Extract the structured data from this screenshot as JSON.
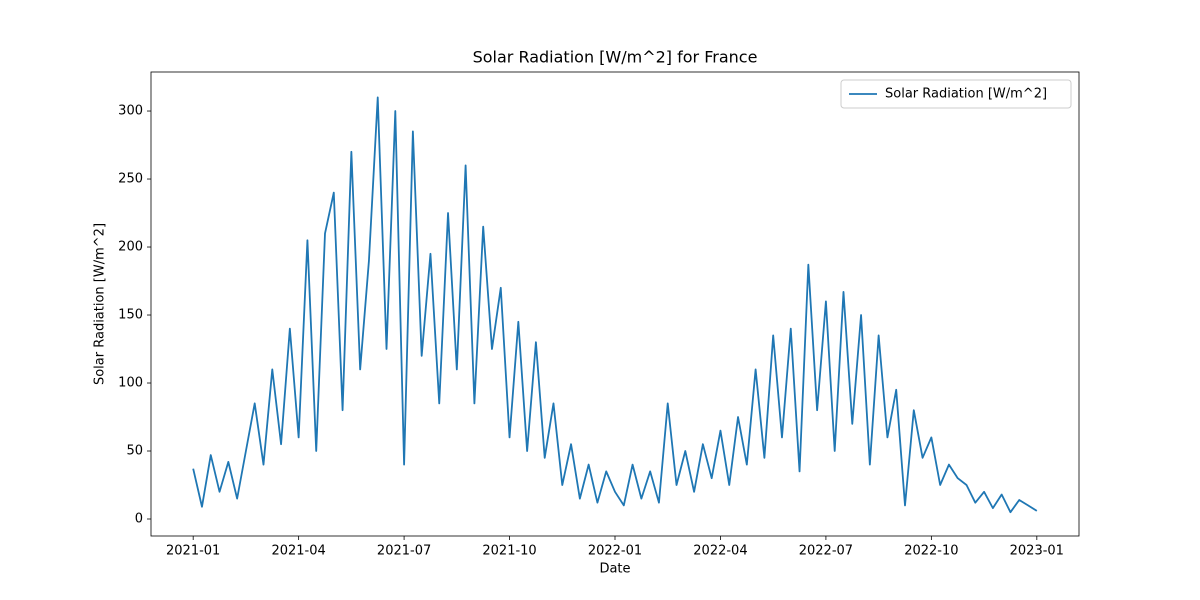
{
  "chart_data": {
    "type": "line",
    "title": "Solar Radiation [W/m^2] for France",
    "x_label": "Date",
    "y_label": "Solar Radiation [W/m^2]",
    "x": [
      0,
      0.25,
      0.5,
      0.75,
      1,
      1.25,
      1.5,
      1.75,
      2,
      2.25,
      2.5,
      2.75,
      3,
      3.25,
      3.5,
      3.75,
      4,
      4.25,
      4.5,
      4.75,
      5,
      5.25,
      5.5,
      5.75,
      6,
      6.25,
      6.5,
      6.75,
      7,
      7.25,
      7.5,
      7.75,
      8,
      8.25,
      8.5,
      8.75,
      9,
      9.25,
      9.5,
      9.75,
      10,
      10.25,
      10.5,
      10.75,
      11,
      11.25,
      11.5,
      11.75,
      12,
      12.25,
      12.5,
      12.75,
      13,
      13.25,
      13.5,
      13.75,
      14,
      14.25,
      14.5,
      14.75,
      15,
      15.25,
      15.5,
      15.75,
      16,
      16.25,
      16.5,
      16.75,
      17,
      17.25,
      17.5,
      17.75,
      18,
      18.25,
      18.5,
      18.75,
      19,
      19.25,
      19.5,
      19.75,
      20,
      20.25,
      20.5,
      20.75,
      21,
      21.25,
      21.5,
      21.75,
      22,
      22.25,
      22.5,
      22.75,
      23,
      23.25,
      23.5,
      23.75,
      24
    ],
    "series": [
      {
        "name": "Solar Radiation [W/m^2]",
        "color": "#1f77b4",
        "values": [
          37,
          9,
          47,
          20,
          42,
          15,
          50,
          85,
          40,
          110,
          55,
          140,
          60,
          205,
          50,
          210,
          240,
          80,
          270,
          110,
          190,
          310,
          125,
          300,
          40,
          285,
          120,
          195,
          85,
          225,
          110,
          260,
          85,
          215,
          125,
          170,
          60,
          145,
          50,
          130,
          45,
          85,
          25,
          55,
          15,
          40,
          12,
          35,
          20,
          10,
          40,
          15,
          35,
          12,
          85,
          25,
          50,
          20,
          55,
          30,
          65,
          25,
          75,
          40,
          110,
          45,
          135,
          60,
          140,
          35,
          187,
          80,
          160,
          50,
          167,
          70,
          150,
          40,
          135,
          60,
          95,
          10,
          80,
          45,
          60,
          25,
          40,
          30,
          25,
          12,
          20,
          8,
          18,
          5,
          14,
          10,
          6
        ]
      }
    ],
    "xlim": [
      -1.2,
      25.2
    ],
    "xticks": [
      {
        "value": 0,
        "label": "2021-01"
      },
      {
        "value": 3,
        "label": "2021-04"
      },
      {
        "value": 6,
        "label": "2021-07"
      },
      {
        "value": 9,
        "label": "2021-10"
      },
      {
        "value": 12,
        "label": "2022-01"
      },
      {
        "value": 15,
        "label": "2022-04"
      },
      {
        "value": 18,
        "label": "2022-07"
      },
      {
        "value": 21,
        "label": "2022-10"
      },
      {
        "value": 24,
        "label": "2023-01"
      }
    ],
    "ylim": [
      -12.5,
      328.7
    ],
    "yticks": [
      0,
      50,
      100,
      150,
      200,
      250,
      300
    ],
    "legend": "upper right"
  }
}
